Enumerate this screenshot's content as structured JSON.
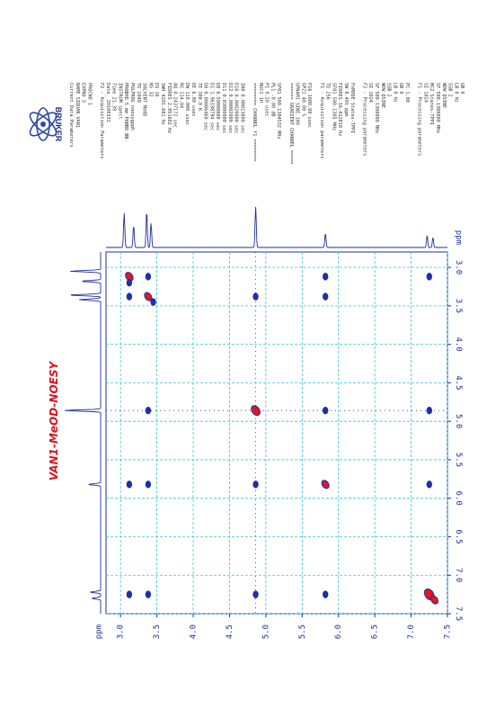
{
  "logo_text": "BRUKER",
  "chart_data": {
    "type": "scatter",
    "title": "VAN1-MeOD-NOESY",
    "x_axis_unit": "ppm",
    "y_axis_unit": "ppm",
    "xlim": [
      2.8,
      7.5
    ],
    "ylim": [
      2.8,
      7.5
    ],
    "ticks": [
      3.0,
      3.5,
      4.0,
      4.5,
      5.0,
      5.5,
      6.0,
      6.5,
      7.0,
      7.5
    ],
    "tick_labels": [
      "3.0",
      "3.5",
      "4.0",
      "4.5",
      "5.0",
      "5.5",
      "6.0",
      "6.5",
      "7.0",
      "7.5"
    ],
    "grid": true,
    "colors": {
      "axis": "#1f2f9a",
      "grid": "#2ec8dc",
      "positive": "#e0181e",
      "negative": "#1f2fa8",
      "spectrum": "#1f2f9a"
    },
    "diagonal_peaks": [
      {
        "x": 3.12,
        "y": 3.12,
        "r": 0.07
      },
      {
        "x": 3.38,
        "y": 3.38,
        "r": 0.06
      },
      {
        "x": 4.86,
        "y": 4.86,
        "r": 0.08
      },
      {
        "x": 5.82,
        "y": 5.82,
        "r": 0.06
      },
      {
        "x": 7.25,
        "y": 7.25,
        "r": 0.09
      },
      {
        "x": 7.32,
        "y": 7.32,
        "r": 0.05
      }
    ],
    "cross_peaks": [
      {
        "x": 3.12,
        "y": 3.38
      },
      {
        "x": 3.38,
        "y": 3.12
      },
      {
        "x": 3.12,
        "y": 5.82
      },
      {
        "x": 5.82,
        "y": 3.12
      },
      {
        "x": 3.38,
        "y": 5.82
      },
      {
        "x": 5.82,
        "y": 3.38
      },
      {
        "x": 3.12,
        "y": 7.25
      },
      {
        "x": 7.25,
        "y": 3.12
      },
      {
        "x": 3.38,
        "y": 7.25
      },
      {
        "x": 3.38,
        "y": 4.86
      },
      {
        "x": 4.86,
        "y": 3.38
      },
      {
        "x": 4.86,
        "y": 5.82
      },
      {
        "x": 5.82,
        "y": 4.86
      },
      {
        "x": 4.86,
        "y": 7.25
      },
      {
        "x": 7.25,
        "y": 4.86
      },
      {
        "x": 5.82,
        "y": 7.25
      },
      {
        "x": 7.25,
        "y": 5.82
      },
      {
        "x": 3.12,
        "y": 3.2
      },
      {
        "x": 3.45,
        "y": 3.45
      }
    ],
    "projection_peaks": [
      {
        "ppm": 3.05,
        "h": 0.85
      },
      {
        "ppm": 3.18,
        "h": 0.55
      },
      {
        "ppm": 3.36,
        "h": 0.9
      },
      {
        "ppm": 3.42,
        "h": 0.6
      },
      {
        "ppm": 4.86,
        "h": 1.0
      },
      {
        "ppm": 5.82,
        "h": 0.35
      },
      {
        "ppm": 7.22,
        "h": 0.3
      },
      {
        "ppm": 7.3,
        "h": 0.25
      }
    ]
  },
  "params": [
    "Current Data Parameters",
    "NAME        SIQUAN_VAN1",
    "EXPNO                 3",
    "PROCNO                1",
    "",
    "F2 - Acquisition Parameters",
    "Date_          20100331",
    "Time              21.39",
    "INSTRUM           spect",
    "PROBHD   5 mm PABBO BB-",
    "PULPROG        noesygpph",
    "TD                 2048",
    "SOLVENT            MeOD",
    "NS                   32",
    "DS                   16",
    "SWH            4201.681 Hz",
    "FIDRES         2.051602 Hz",
    "AQ            0.2437172 sec",
    "RG                114.04",
    "DW               119.000 usec",
    "DE                 6.00 usec",
    "TE                 300.0 K",
    "D0           0.00006460 sec",
    "D1           1.96198794 sec",
    "D8           0.50000000 sec",
    "D11          0.03000000 sec",
    "D12          0.00002000 sec",
    "D16          0.00020000 sec",
    "IN0          0.00023800 sec",
    "",
    "======== CHANNEL f1 ========",
    "NUC1                 1H",
    "P1                  9.20 usec",
    "PL1                 -0.00 dB",
    "SFO1         500.1304532 MHz",
    "",
    "====== GRADIENT CHANNEL =====",
    "GPNAM1         SINE.100",
    "GPZ1               40.00 %",
    "P16              1000.00 usec",
    "",
    "F1 - Acquisition parameters",
    "TD                  256",
    "SFO1          500.1305 MHz",
    "FIDRES        16.412818 Hz",
    "SW                8.401 ppm",
    "FnMODE           States-TPPI",
    "",
    "F2 - Processing parameters",
    "SI                 1024",
    "SF          500.1300000 MHz",
    "WDW               QSINE",
    "SSB                   2",
    "LB                 0 Hz",
    "GB                    0",
    "PC                 1.00",
    "",
    "F1 - Processing parameters",
    "SI                 1024",
    "MC2          States-TPPI",
    "SF          500.1300000 MHz",
    "WDW               QSINE",
    "SSB                   2",
    "LB                 0 Hz",
    "GB                    0"
  ]
}
